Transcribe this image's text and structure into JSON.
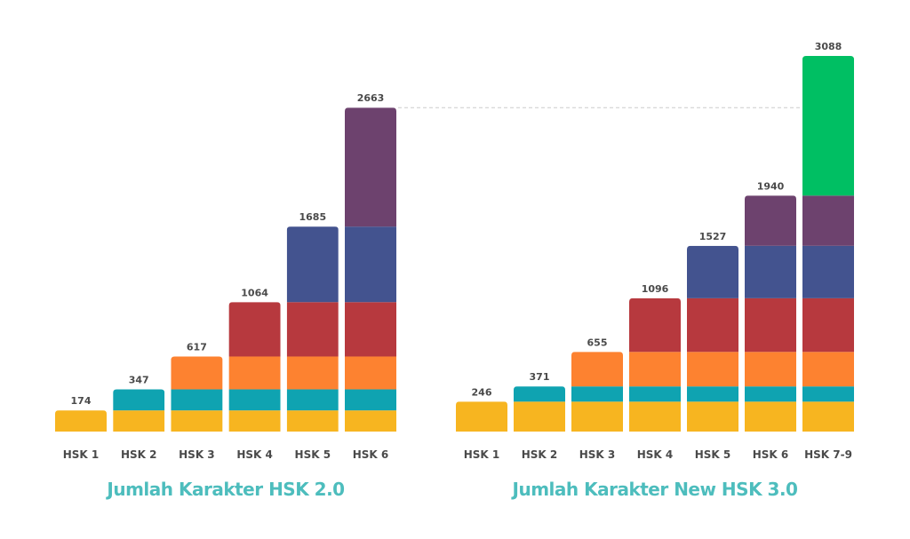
{
  "chart_data": [
    {
      "type": "bar",
      "stacked": true,
      "title": "Jumlah Karakter HSK 2.0",
      "xlabel": "",
      "ylabel": "",
      "categories": [
        "HSK 1",
        "HSK 2",
        "HSK 3",
        "HSK 4",
        "HSK 5",
        "HSK 6"
      ],
      "totals": [
        174,
        347,
        617,
        1064,
        1685,
        2663
      ],
      "total_labels": [
        "174",
        "347",
        "617",
        "1064",
        "1685",
        "2663"
      ],
      "level_colors": [
        "#f7b520",
        "#0fa3b1",
        "#fd8230",
        "#b7393e",
        "#43538f",
        "#6d426e"
      ],
      "ylim": [
        0,
        3200
      ],
      "grid": false,
      "reference_line": {
        "value": 2663,
        "style": "dashed",
        "color": "#cccccc"
      }
    },
    {
      "type": "bar",
      "stacked": true,
      "title": "Jumlah Karakter New HSK 3.0",
      "xlabel": "",
      "ylabel": "",
      "categories": [
        "HSK 1",
        "HSK 2",
        "HSK 3",
        "HSK 4",
        "HSK 5",
        "HSK 6",
        "HSK 7-9"
      ],
      "totals": [
        246,
        371,
        655,
        1096,
        1527,
        1940,
        3088
      ],
      "total_labels": [
        "246",
        "371",
        "655",
        "1096",
        "1527",
        "1940",
        "3088"
      ],
      "level_colors": [
        "#f7b520",
        "#0fa3b1",
        "#fd8230",
        "#b7393e",
        "#43538f",
        "#6d426e",
        "#00bf63"
      ],
      "ylim": [
        0,
        3200
      ],
      "grid": false
    }
  ],
  "title_color": "#4dbdbd",
  "text_color": "#4a4a4a"
}
